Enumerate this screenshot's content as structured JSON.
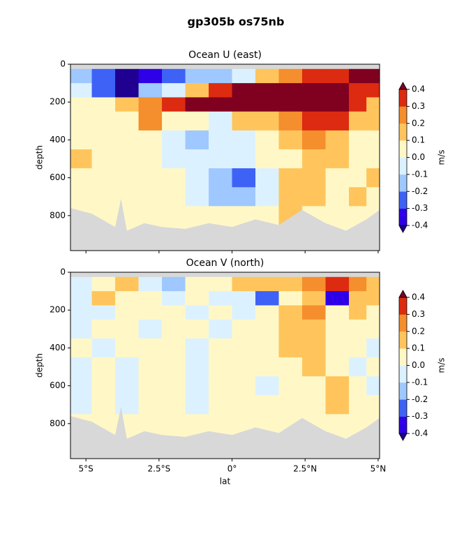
{
  "title": "gp305b os75nb",
  "chart_data": [
    {
      "type": "contour",
      "title": "Ocean U (east)",
      "ylabel": "depth",
      "colorbar_label": "m/s",
      "xlim": [
        -5.53,
        5.05
      ],
      "ylim": [
        985,
        0
      ],
      "xticks": [
        -5,
        -2.5,
        0,
        2.5,
        5
      ],
      "yticks": [
        0,
        200,
        400,
        600,
        800
      ],
      "levels": [
        -0.4,
        -0.3,
        -0.2,
        -0.1,
        {
          "value": 0,
          "label": "0.0"
        },
        0.1,
        0.2,
        0.3,
        0.4
      ],
      "colors": [
        "#2e00e8",
        "#3d62f5",
        "#9ec8ff",
        "#dcf1ff",
        "#fff8c6",
        "#ffc55c",
        "#f58e2c",
        "#dc2b10"
      ],
      "under_color": "#1f0090",
      "over_color": "#800020",
      "mask_color": "#d8d8d8",
      "x_edges": [
        -5.53,
        -4.8,
        -4,
        -3.2,
        -2.4,
        -1.6,
        -0.8,
        0,
        0.8,
        1.6,
        2.4,
        3.2,
        4,
        4.6,
        5.05
      ],
      "y_edges": [
        25,
        100,
        175,
        250,
        350,
        450,
        550,
        650,
        750,
        850,
        985
      ],
      "values": [
        [
          -0.15,
          -0.3,
          -0.45,
          -0.35,
          -0.3,
          -0.2,
          -0.15,
          -0.05,
          0.1,
          0.2,
          0.3,
          0.35,
          0.5,
          0.45
        ],
        [
          -0.1,
          -0.25,
          -0.45,
          -0.2,
          -0.1,
          0.1,
          0.3,
          0.45,
          0.5,
          0.5,
          0.45,
          0.5,
          0.35,
          0.3
        ],
        [
          0.05,
          0.05,
          0.1,
          0.25,
          0.3,
          0.45,
          0.5,
          0.5,
          0.5,
          0.45,
          0.45,
          0.5,
          0.35,
          0.15
        ],
        [
          0.05,
          0.04,
          0.05,
          0.25,
          0.05,
          0.01,
          -0.05,
          0.1,
          0.15,
          0.25,
          0.35,
          0.35,
          0.15,
          0.1
        ],
        [
          0.05,
          0.05,
          0.05,
          0.05,
          -0.05,
          -0.15,
          -0.1,
          -0.05,
          0.05,
          0.1,
          0.2,
          0.15,
          0.05,
          0.05
        ],
        [
          0.1,
          0.05,
          0.05,
          0.05,
          -0.05,
          -0.05,
          -0.05,
          -0.05,
          0.05,
          0.05,
          0.15,
          0.1,
          0.05,
          0.05
        ],
        [
          0.05,
          0.05,
          0.05,
          0.01,
          0.05,
          -0.05,
          -0.15,
          -0.25,
          -0.05,
          0.15,
          0.15,
          0.05,
          0.05,
          0.1
        ],
        [
          0.05,
          0.05,
          0.01,
          0.05,
          0.05,
          -0.05,
          -0.15,
          -0.15,
          -0.05,
          0.15,
          0.1,
          0.05,
          0.15,
          0.05
        ],
        [
          0.05,
          0.05,
          0.05,
          0.05,
          0.01,
          0.05,
          0.05,
          0.05,
          0.05,
          0.1,
          0.05,
          0.05,
          0.05,
          0.05
        ],
        [
          0.05,
          0.05,
          0.05,
          0.05,
          0.05,
          0.05,
          0.05,
          0.05,
          0.05,
          0.05,
          0.05,
          0.05,
          0.05,
          0.05
        ]
      ],
      "seafloor_lat": [
        -5.53,
        -4.8,
        -4,
        -3.8,
        -3.6,
        -3,
        -2.4,
        -1.6,
        -0.8,
        0,
        0.8,
        1.6,
        2.4,
        3.2,
        3.9,
        4.6,
        5.05
      ],
      "seafloor_depth": [
        760,
        790,
        860,
        710,
        880,
        840,
        860,
        870,
        840,
        860,
        820,
        850,
        770,
        840,
        880,
        820,
        770
      ]
    },
    {
      "type": "contour",
      "title": "Ocean V (north)",
      "ylabel": "depth",
      "xlabel": "lat",
      "colorbar_label": "m/s",
      "xlim": [
        -5.53,
        5.05
      ],
      "ylim": [
        985,
        0
      ],
      "xticks": [
        {
          "value": -5,
          "label": "5°S"
        },
        {
          "value": -2.5,
          "label": "2.5°S"
        },
        {
          "value": 0,
          "label": "0°"
        },
        {
          "value": 2.5,
          "label": "2.5°N"
        },
        {
          "value": 5,
          "label": "5°N"
        }
      ],
      "yticks": [
        0,
        200,
        400,
        600,
        800
      ],
      "levels": [
        -0.4,
        -0.3,
        -0.2,
        -0.1,
        {
          "value": 0,
          "label": "0.0"
        },
        0.1,
        0.2,
        0.3,
        0.4
      ],
      "colors": [
        "#2e00e8",
        "#3d62f5",
        "#9ec8ff",
        "#dcf1ff",
        "#fff8c6",
        "#ffc55c",
        "#f58e2c",
        "#dc2b10"
      ],
      "under_color": "#1f0090",
      "over_color": "#800020",
      "mask_color": "#d8d8d8",
      "x_edges": [
        -5.53,
        -4.8,
        -4,
        -3.2,
        -2.4,
        -1.6,
        -0.8,
        0,
        0.8,
        1.6,
        2.4,
        3.2,
        4,
        4.6,
        5.05
      ],
      "y_edges": [
        25,
        100,
        175,
        250,
        350,
        450,
        550,
        650,
        750,
        850,
        985
      ],
      "values": [
        [
          -0.05,
          0.05,
          0.1,
          -0.1,
          -0.15,
          0.05,
          0.05,
          0.1,
          0.15,
          0.1,
          0.25,
          0.35,
          0.2,
          0.1
        ],
        [
          -0.05,
          0.1,
          0.05,
          0.05,
          -0.05,
          0.05,
          -0.1,
          -0.05,
          -0.3,
          0.05,
          0.15,
          -0.35,
          0.1,
          0.15
        ],
        [
          -0.05,
          -0.05,
          0.05,
          0.05,
          0.05,
          -0.05,
          0.05,
          -0.05,
          0.05,
          0.15,
          0.25,
          0.05,
          0.15,
          0.05
        ],
        [
          -0.05,
          0.05,
          0.05,
          -0.05,
          0.05,
          0.05,
          -0.05,
          0.05,
          0.05,
          0.15,
          0.15,
          0.05,
          0.05,
          0.05
        ],
        [
          0.05,
          -0.05,
          0.05,
          0.05,
          0.05,
          -0.05,
          0.05,
          0.05,
          0.05,
          0.15,
          0.15,
          0.05,
          0.05,
          -0.05
        ],
        [
          -0.05,
          0.05,
          -0.05,
          0.05,
          0.05,
          -0.05,
          0.05,
          0.05,
          0.05,
          0.05,
          0.15,
          0.05,
          -0.05,
          0.05
        ],
        [
          -0.05,
          0.05,
          -0.05,
          0.05,
          0.05,
          -0.05,
          0.05,
          0.05,
          -0.05,
          0.05,
          0.05,
          0.15,
          0.05,
          -0.05
        ],
        [
          -0.05,
          0.05,
          -0.05,
          0.05,
          0.05,
          -0.05,
          0.05,
          0.05,
          0.05,
          0.05,
          0.05,
          0.15,
          0.05,
          0.05
        ],
        [
          0.05,
          0.05,
          0.05,
          0.05,
          0.05,
          0.05,
          0.05,
          0.05,
          0.05,
          0.05,
          0.05,
          0.05,
          0.05,
          0.05
        ],
        [
          0.05,
          0.05,
          0.05,
          0.05,
          0.05,
          0.05,
          0.05,
          0.05,
          0.05,
          0.05,
          0.05,
          0.05,
          0.05,
          0.05
        ]
      ],
      "seafloor_lat": [
        -5.53,
        -4.8,
        -4,
        -3.8,
        -3.6,
        -3,
        -2.4,
        -1.6,
        -0.8,
        0,
        0.8,
        1.6,
        2.4,
        3.2,
        3.9,
        4.6,
        5.05
      ],
      "seafloor_depth": [
        760,
        790,
        860,
        710,
        880,
        840,
        860,
        870,
        840,
        860,
        820,
        850,
        770,
        840,
        880,
        820,
        770
      ]
    }
  ]
}
